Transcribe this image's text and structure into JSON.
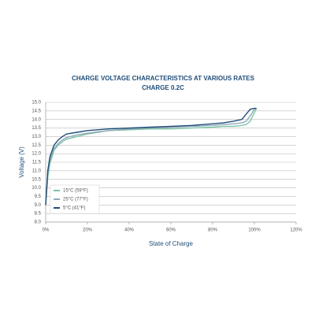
{
  "chart_data": {
    "type": "line",
    "title": "CHARGE VOLTAGE CHARACTERISTICS AT VARIOUS RATES",
    "subtitle": "CHARGE 0.2C",
    "x_label": "State of Charge",
    "y_label": "Voltage (V)",
    "x": [
      0,
      1,
      2,
      4,
      6,
      8,
      10,
      15,
      20,
      30,
      40,
      50,
      60,
      70,
      80,
      85,
      90,
      94,
      96,
      98,
      100,
      101
    ],
    "series": [
      {
        "name": "15°C (59°F)",
        "color": "#7cc4a4",
        "values": [
          9.0,
          10.6,
          11.4,
          12.2,
          12.5,
          12.7,
          12.85,
          13.0,
          13.15,
          13.35,
          13.4,
          13.45,
          13.45,
          13.5,
          13.55,
          13.6,
          13.6,
          13.65,
          13.7,
          13.9,
          14.4,
          14.65
        ]
      },
      {
        "name": "25°C (77°F)",
        "color": "#8fa9bb",
        "values": [
          9.0,
          10.8,
          11.6,
          12.3,
          12.6,
          12.8,
          12.95,
          13.1,
          13.2,
          13.35,
          13.45,
          13.5,
          13.55,
          13.6,
          13.65,
          13.7,
          13.75,
          13.8,
          13.9,
          14.2,
          14.6,
          14.65
        ]
      },
      {
        "name": "5°C (41°F)",
        "color": "#1f4e79",
        "values": [
          9.0,
          11.0,
          11.8,
          12.5,
          12.8,
          13.0,
          13.15,
          13.25,
          13.35,
          13.45,
          13.5,
          13.55,
          13.6,
          13.65,
          13.75,
          13.8,
          13.9,
          14.0,
          14.3,
          14.6,
          14.65,
          14.65
        ]
      }
    ],
    "xlim": [
      0,
      120
    ],
    "xticks": [
      {
        "value": 0,
        "label": "0%"
      },
      {
        "value": 20,
        "label": "20%"
      },
      {
        "value": 40,
        "label": "40%"
      },
      {
        "value": 60,
        "label": "60%"
      },
      {
        "value": 80,
        "label": "80%"
      },
      {
        "value": 100,
        "label": "100%"
      },
      {
        "value": 120,
        "label": "120%"
      }
    ],
    "ylim": [
      8,
      15
    ],
    "yticks": [
      {
        "value": 8,
        "label": "8.0"
      },
      8.5,
      {
        "value": 9,
        "label": "9.0"
      },
      9.5,
      {
        "value": 10,
        "label": "10.0"
      },
      10.5,
      {
        "value": 11,
        "label": "11.0"
      },
      11.5,
      {
        "value": 12,
        "label": "12.0"
      },
      12.5,
      {
        "value": 13,
        "label": "13.0"
      },
      13.5,
      {
        "value": 14,
        "label": "14.0"
      },
      14.5,
      {
        "value": 15,
        "label": "15.0"
      }
    ],
    "grid": true,
    "legend": "lower left"
  }
}
